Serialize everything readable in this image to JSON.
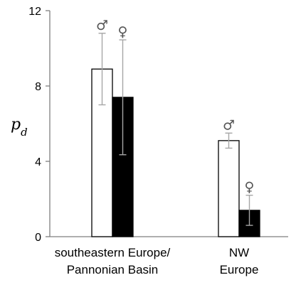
{
  "chart_data": {
    "type": "bar",
    "title": "",
    "xlabel": "",
    "ylabel": "p",
    "ylabel_subscript": "d",
    "ylim": [
      0,
      12
    ],
    "yticks": [
      "0",
      "4",
      "8",
      "12"
    ],
    "grid": false,
    "categories": [
      [
        "southeastern Europe/",
        "Pannonian Basin"
      ],
      [
        "NW",
        "Europe"
      ]
    ],
    "series": [
      {
        "symbol": "♂",
        "fill": "#ffffff",
        "values": [
          8.9,
          5.1
        ],
        "errors": [
          {
            "low": 7.0,
            "high": 10.8
          },
          {
            "low": 4.7,
            "high": 5.5
          }
        ]
      },
      {
        "symbol": "♀",
        "fill": "#000000",
        "values": [
          7.4,
          1.4
        ],
        "errors": [
          {
            "low": 4.35,
            "high": 10.45
          },
          {
            "low": 0.6,
            "high": 2.2
          }
        ]
      }
    ],
    "colors": {
      "axis": "#7f7f7f",
      "errorbar": "#a6a6a6",
      "bar_outline": "#000000",
      "symbol": "#555555"
    }
  }
}
